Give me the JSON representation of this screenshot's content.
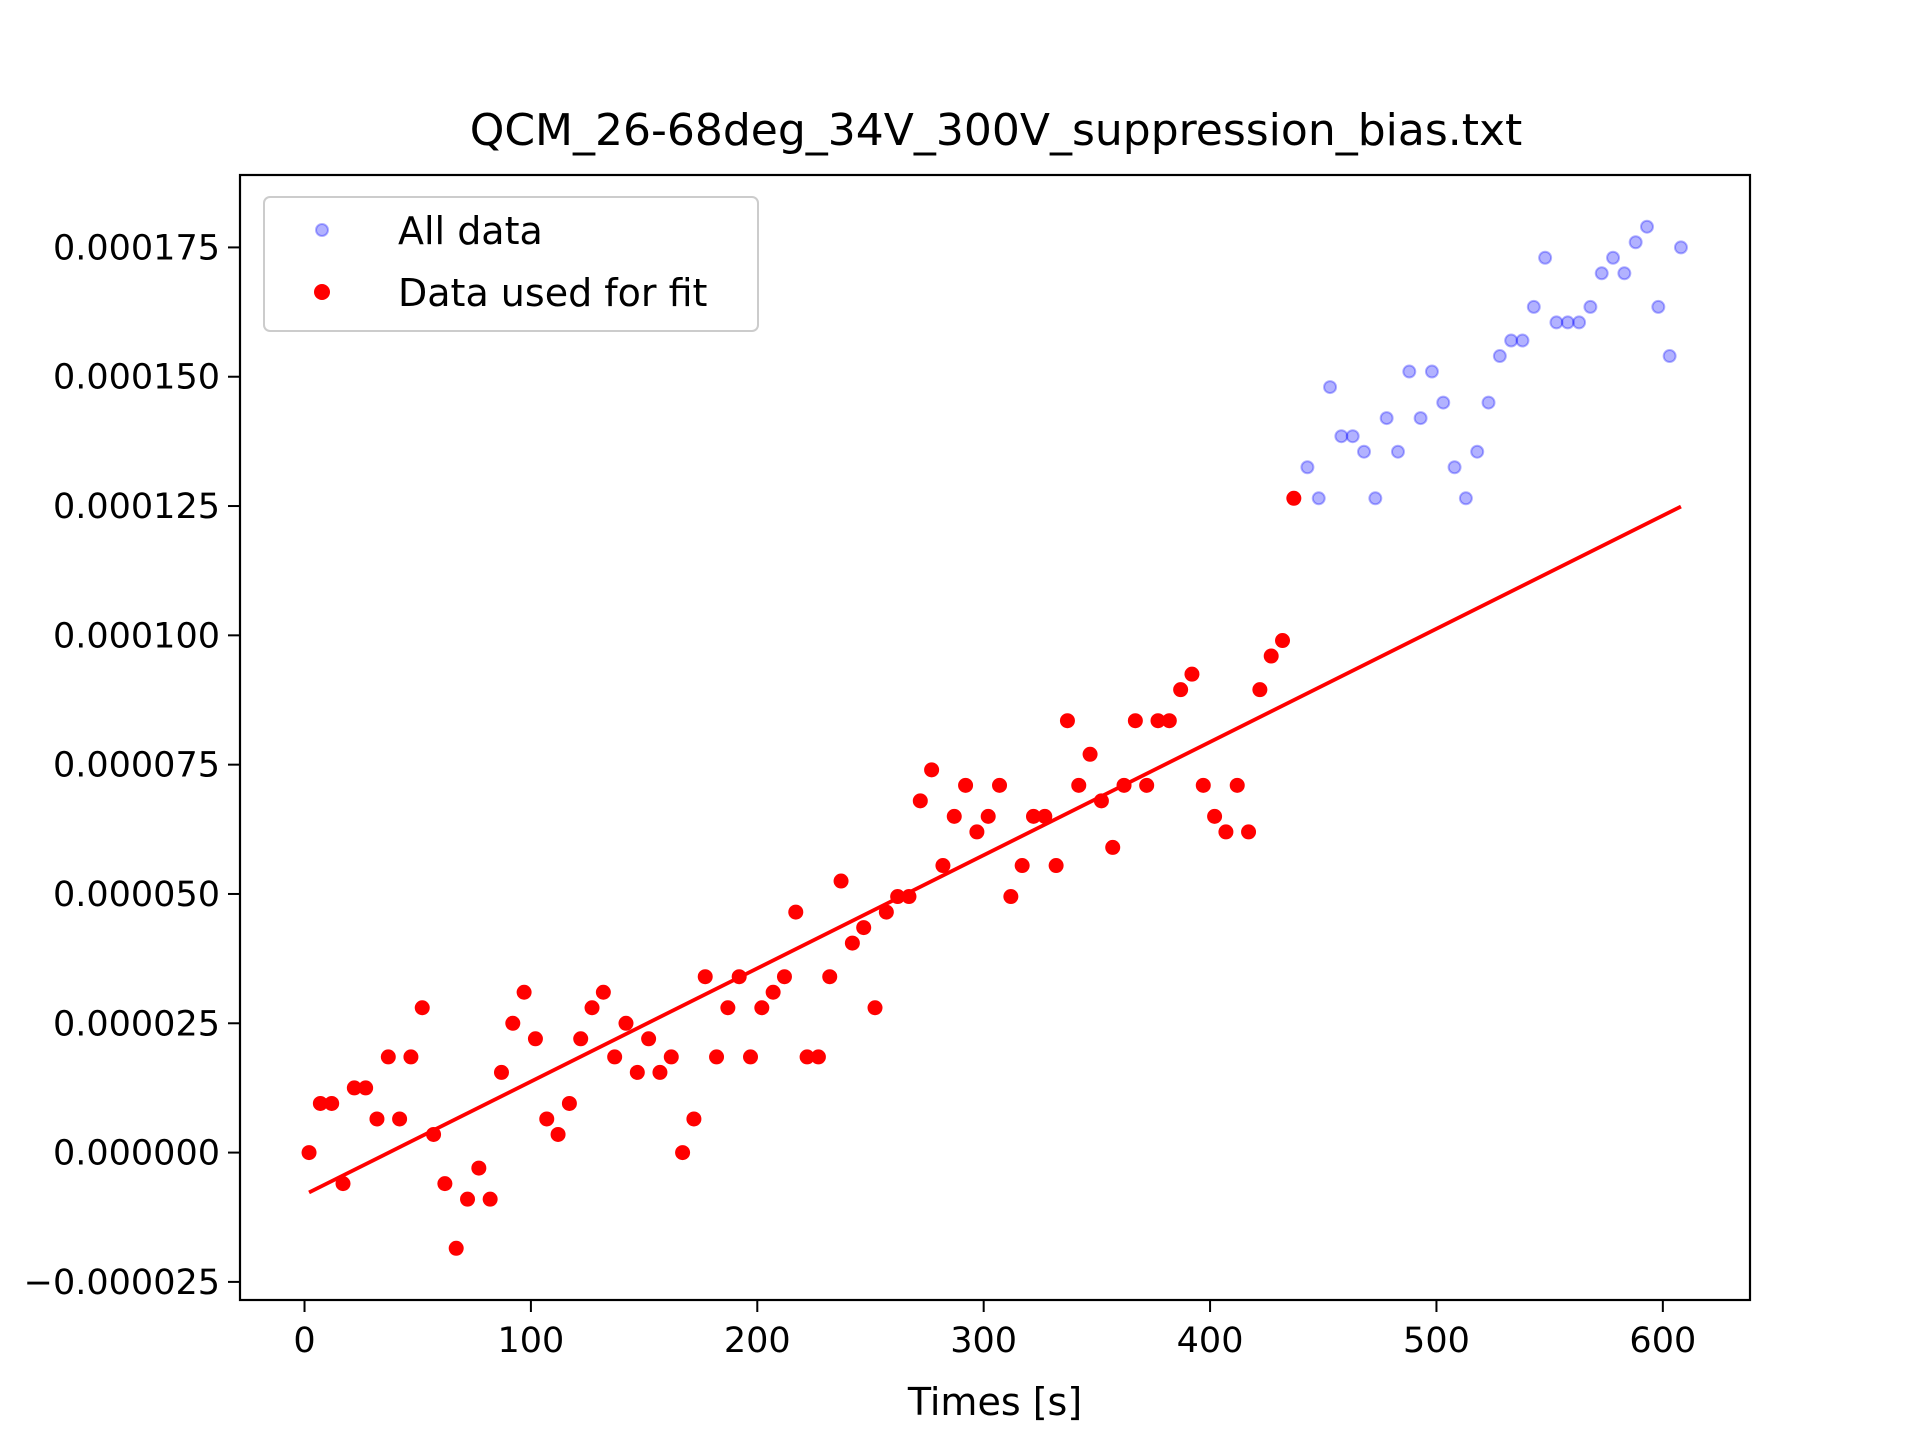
{
  "chart_data": {
    "type": "scatter",
    "title": "QCM_26-68deg_34V_300V_suppression_bias.txt",
    "xlabel": "Times [s]",
    "ylabel": "",
    "xlim": [
      -28.5,
      638.5
    ],
    "ylim": [
      -2.85e-05,
      0.000189
    ],
    "x_ticks": [
      0,
      100,
      200,
      300,
      400,
      500,
      600
    ],
    "x_tick_labels": [
      "0",
      "100",
      "200",
      "300",
      "400",
      "500",
      "600"
    ],
    "y_ticks": [
      -2.5e-05,
      0,
      2.5e-05,
      5e-05,
      7.5e-05,
      0.0001,
      0.000125,
      0.00015,
      0.000175
    ],
    "y_tick_labels": [
      "−0.000025",
      "0.000000",
      "0.000025",
      "0.000050",
      "0.000075",
      "0.000100",
      "0.000125",
      "0.000150",
      "0.000175"
    ],
    "grid": false,
    "legend_position": "top-left",
    "colors": {
      "all_data": "#0000ff",
      "fit_data": "#ff0000",
      "fit_line": "#ff0000"
    },
    "series": [
      {
        "name": "All data",
        "marker": "hollow-circle",
        "x": [
          443,
          448,
          453,
          458,
          463,
          468,
          473,
          478,
          483,
          488,
          493,
          498,
          503,
          508,
          513,
          518,
          523,
          528,
          533,
          538,
          543,
          548,
          553,
          558,
          563,
          568,
          573,
          578,
          583,
          588,
          593,
          598,
          603,
          608
        ],
        "y": [
          0.0001325,
          0.0001265,
          0.000148,
          0.0001385,
          0.0001385,
          0.0001355,
          0.0001265,
          0.000142,
          0.0001355,
          0.000151,
          0.000142,
          0.000151,
          0.000145,
          0.0001325,
          0.0001265,
          0.0001355,
          0.000145,
          0.000154,
          0.000157,
          0.000157,
          0.0001635,
          0.000173,
          0.0001605,
          0.0001605,
          0.0001605,
          0.0001635,
          0.00017,
          0.000173,
          0.00017,
          0.000176,
          0.000179,
          0.0001635,
          0.000154,
          0.000175
        ]
      },
      {
        "name": "Data used for fit",
        "marker": "filled-circle",
        "x": [
          2,
          7,
          12,
          17,
          22,
          27,
          32,
          37,
          42,
          47,
          52,
          57,
          62,
          67,
          72,
          77,
          82,
          87,
          92,
          97,
          102,
          107,
          112,
          117,
          122,
          127,
          132,
          137,
          142,
          147,
          152,
          157,
          162,
          167,
          172,
          177,
          182,
          187,
          192,
          197,
          202,
          207,
          212,
          217,
          222,
          227,
          232,
          237,
          242,
          247,
          252,
          257,
          262,
          267,
          272,
          277,
          282,
          287,
          292,
          297,
          302,
          307,
          312,
          317,
          322,
          327,
          332,
          337,
          342,
          347,
          352,
          357,
          362,
          367,
          372,
          377,
          382,
          387,
          392,
          397,
          402,
          407,
          412,
          417,
          422,
          427,
          432,
          437
        ],
        "y": [
          0.0,
          9.5e-06,
          9.5e-06,
          -6e-06,
          1.25e-05,
          1.25e-05,
          6.5e-06,
          1.85e-05,
          6.5e-06,
          1.85e-05,
          2.8e-05,
          3.5e-06,
          -6e-06,
          -1.85e-05,
          -9e-06,
          -3e-06,
          -9e-06,
          1.55e-05,
          2.5e-05,
          3.1e-05,
          2.2e-05,
          6.5e-06,
          3.5e-06,
          9.5e-06,
          2.2e-05,
          2.8e-05,
          3.1e-05,
          1.85e-05,
          2.5e-05,
          1.55e-05,
          2.2e-05,
          1.55e-05,
          1.85e-05,
          0.0,
          6.5e-06,
          3.4e-05,
          1.85e-05,
          2.8e-05,
          3.4e-05,
          1.85e-05,
          2.8e-05,
          3.1e-05,
          3.4e-05,
          4.65e-05,
          1.85e-05,
          1.85e-05,
          3.4e-05,
          5.25e-05,
          4.05e-05,
          4.35e-05,
          2.8e-05,
          4.65e-05,
          4.95e-05,
          4.95e-05,
          6.8e-05,
          7.4e-05,
          5.55e-05,
          6.5e-05,
          7.1e-05,
          6.2e-05,
          6.5e-05,
          7.1e-05,
          4.95e-05,
          5.55e-05,
          6.5e-05,
          6.5e-05,
          5.55e-05,
          8.35e-05,
          7.1e-05,
          7.7e-05,
          6.8e-05,
          5.9e-05,
          7.1e-05,
          8.35e-05,
          7.1e-05,
          8.35e-05,
          8.35e-05,
          8.95e-05,
          9.25e-05,
          7.1e-05,
          6.5e-05,
          6.2e-05,
          7.1e-05,
          6.2e-05,
          8.95e-05,
          9.6e-05,
          9.9e-05,
          0.0001265
        ]
      }
    ],
    "fit_line": {
      "x": [
        2,
        608
      ],
      "y": [
        -7.7e-06,
        0.0001249
      ]
    }
  }
}
